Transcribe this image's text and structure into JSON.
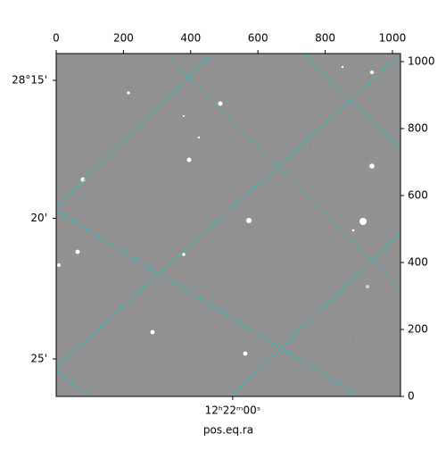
{
  "chart_data": {
    "type": "image",
    "xlabel": "pos.eq.ra",
    "xlim": [
      0,
      1024
    ],
    "ylim": [
      0,
      1024
    ],
    "xticks": [
      0,
      200,
      400,
      600,
      800,
      1000
    ],
    "yticks": [
      0,
      200,
      400,
      600,
      800,
      1000
    ],
    "x_world_ticks": [
      {
        "value": 525,
        "label": "12ʰ22ᵐ00ˢ"
      }
    ],
    "y_world_ticks": [
      {
        "value": 944,
        "label": "28°15'"
      },
      {
        "value": 532,
        "label": "20'"
      },
      {
        "value": 112,
        "label": "25'"
      }
    ],
    "grid": true,
    "grid_color": "#00d4d4"
  }
}
